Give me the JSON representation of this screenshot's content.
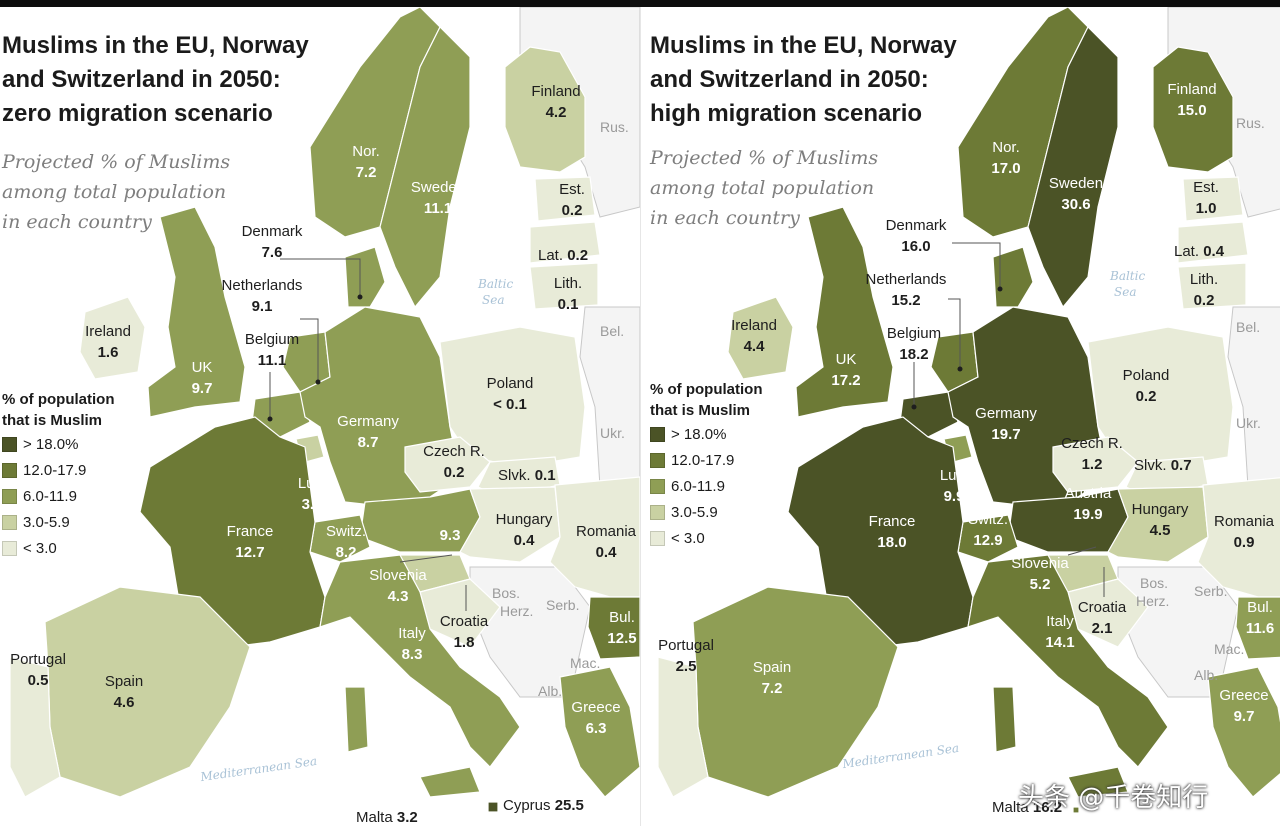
{
  "colors": {
    "gt18": "#4b5326",
    "c12_17": "#6d7a36",
    "c6_11": "#8f9e55",
    "c3_5": "#c9d1a2",
    "lt3": "#e8ebd8",
    "non_data": "#f4f4f4",
    "sea": "#ffffff",
    "border": "#bfbfbf"
  },
  "legend": {
    "title_line1": "% of population",
    "title_line2": "that is Muslim",
    "items": [
      {
        "label": "> 18.0%",
        "color_key": "gt18"
      },
      {
        "label": "12.0-17.9",
        "color_key": "c12_17"
      },
      {
        "label": "6.0-11.9",
        "color_key": "c6_11"
      },
      {
        "label": "3.0-5.9",
        "color_key": "c3_5"
      },
      {
        "label": "< 3.0",
        "color_key": "lt3"
      }
    ]
  },
  "panels": {
    "left": {
      "title_line1": "Muslims in the EU, Norway",
      "title_line2": "and Switzerland in 2050:",
      "title_line3": "zero migration scenario",
      "subtitle_line1": "Projected % of Muslims",
      "subtitle_line2": "among total population",
      "subtitle_line3": "in each country",
      "countries": {
        "norway": {
          "name": "Nor.",
          "value": "7.2",
          "color": "#8f9e55"
        },
        "sweden": {
          "name": "Sweden",
          "value": "11.1",
          "color": "#8f9e55"
        },
        "finland": {
          "name": "Finland",
          "value": "4.2",
          "color": "#c9d1a2"
        },
        "estonia": {
          "name": "Est.",
          "value": "0.2",
          "color": "#e8ebd8"
        },
        "latvia": {
          "name": "Lat.",
          "value": "0.2",
          "color": "#e8ebd8"
        },
        "lithuania": {
          "name": "Lith.",
          "value": "0.1",
          "color": "#e8ebd8"
        },
        "denmark": {
          "name": "Denmark",
          "value": "7.6",
          "color": "#8f9e55"
        },
        "netherlands": {
          "name": "Netherlands",
          "value": "9.1",
          "color": "#8f9e55"
        },
        "belgium": {
          "name": "Belgium",
          "value": "11.1",
          "color": "#8f9e55"
        },
        "ireland": {
          "name": "Ireland",
          "value": "1.6",
          "color": "#e8ebd8"
        },
        "uk": {
          "name": "UK",
          "value": "9.7",
          "color": "#8f9e55"
        },
        "germany": {
          "name": "Germany",
          "value": "8.7",
          "color": "#8f9e55"
        },
        "poland": {
          "name": "Poland",
          "value": "< 0.1",
          "color": "#e8ebd8"
        },
        "czech": {
          "name": "Czech R.",
          "value": "0.2",
          "color": "#e8ebd8"
        },
        "slovakia": {
          "name": "Slvk.",
          "value": "0.1",
          "color": "#e8ebd8"
        },
        "austria": {
          "name": "",
          "value": "9.3",
          "color": "#8f9e55"
        },
        "hungary": {
          "name": "Hungary",
          "value": "0.4",
          "color": "#e8ebd8"
        },
        "romania": {
          "name": "Romania",
          "value": "0.4",
          "color": "#e8ebd8"
        },
        "luxembourg": {
          "name": "Lux.",
          "value": "3.4",
          "color": "#c9d1a2"
        },
        "switzerland": {
          "name": "Switz.",
          "value": "8.2",
          "color": "#8f9e55"
        },
        "france": {
          "name": "France",
          "value": "12.7",
          "color": "#6d7a36"
        },
        "slovenia": {
          "name": "Slovenia",
          "value": "4.3",
          "color": "#c9d1a2"
        },
        "croatia": {
          "name": "Croatia",
          "value": "1.8",
          "color": "#e8ebd8"
        },
        "bulgaria": {
          "name": "Bul.",
          "value": "12.5",
          "color": "#6d7a36"
        },
        "italy": {
          "name": "Italy",
          "value": "8.3",
          "color": "#8f9e55"
        },
        "greece": {
          "name": "Greece",
          "value": "6.3",
          "color": "#8f9e55"
        },
        "portugal": {
          "name": "Portugal",
          "value": "0.5",
          "color": "#e8ebd8"
        },
        "spain": {
          "name": "Spain",
          "value": "4.6",
          "color": "#c9d1a2"
        },
        "cyprus": {
          "name": "Cyprus",
          "value": "25.5",
          "color": "#4b5326"
        },
        "malta": {
          "name": "Malta",
          "value": "3.2",
          "color": "#c9d1a2"
        }
      }
    },
    "right": {
      "title_line1": "Muslims in the EU, Norway",
      "title_line2": "and Switzerland in 2050:",
      "title_line3": "high migration scenario",
      "subtitle_line1": "Projected % of Muslims",
      "subtitle_line2": "among total population",
      "subtitle_line3": "in each country",
      "countries": {
        "norway": {
          "name": "Nor.",
          "value": "17.0",
          "color": "#6d7a36"
        },
        "sweden": {
          "name": "Sweden",
          "value": "30.6",
          "color": "#4b5326"
        },
        "finland": {
          "name": "Finland",
          "value": "15.0",
          "color": "#6d7a36"
        },
        "estonia": {
          "name": "Est.",
          "value": "1.0",
          "color": "#e8ebd8"
        },
        "latvia": {
          "name": "Lat.",
          "value": "0.4",
          "color": "#e8ebd8"
        },
        "lithuania": {
          "name": "Lith.",
          "value": "0.2",
          "color": "#e8ebd8"
        },
        "denmark": {
          "name": "Denmark",
          "value": "16.0",
          "color": "#6d7a36"
        },
        "netherlands": {
          "name": "Netherlands",
          "value": "15.2",
          "color": "#6d7a36"
        },
        "belgium": {
          "name": "Belgium",
          "value": "18.2",
          "color": "#4b5326"
        },
        "ireland": {
          "name": "Ireland",
          "value": "4.4",
          "color": "#c9d1a2"
        },
        "uk": {
          "name": "UK",
          "value": "17.2",
          "color": "#6d7a36"
        },
        "germany": {
          "name": "Germany",
          "value": "19.7",
          "color": "#4b5326"
        },
        "poland": {
          "name": "Poland",
          "value": "0.2",
          "color": "#e8ebd8"
        },
        "czech": {
          "name": "Czech R.",
          "value": "1.2",
          "color": "#e8ebd8"
        },
        "slovakia": {
          "name": "Slvk.",
          "value": "0.7",
          "color": "#e8ebd8"
        },
        "austria": {
          "name": "Austria",
          "value": "19.9",
          "color": "#4b5326"
        },
        "hungary": {
          "name": "Hungary",
          "value": "4.5",
          "color": "#c9d1a2"
        },
        "romania": {
          "name": "Romania",
          "value": "0.9",
          "color": "#e8ebd8"
        },
        "luxembourg": {
          "name": "Lux.",
          "value": "9.9",
          "color": "#8f9e55"
        },
        "switzerland": {
          "name": "Switz.",
          "value": "12.9",
          "color": "#6d7a36"
        },
        "france": {
          "name": "France",
          "value": "18.0",
          "color": "#4b5326"
        },
        "slovenia": {
          "name": "Slovenia",
          "value": "5.2",
          "color": "#c9d1a2"
        },
        "croatia": {
          "name": "Croatia",
          "value": "2.1",
          "color": "#e8ebd8"
        },
        "bulgaria": {
          "name": "Bul.",
          "value": "11.6",
          "color": "#8f9e55"
        },
        "italy": {
          "name": "Italy",
          "value": "14.1",
          "color": "#6d7a36"
        },
        "greece": {
          "name": "Greece",
          "value": "9.7",
          "color": "#8f9e55"
        },
        "portugal": {
          "name": "Portugal",
          "value": "2.5",
          "color": "#e8ebd8"
        },
        "spain": {
          "name": "Spain",
          "value": "7.2",
          "color": "#8f9e55"
        },
        "malta": {
          "name": "Malta",
          "value": "16.2",
          "color": "#6d7a36"
        }
      }
    }
  },
  "other_labels": {
    "rus": "Rus.",
    "bel": "Bel.",
    "ukr": "Ukr.",
    "bos": "Bos.",
    "herz": "Herz.",
    "serb": "Serb.",
    "mac": "Mac.",
    "alb": "Alb.",
    "baltic_sea_1": "Baltic",
    "baltic_sea_2": "Sea",
    "mediterranean": "Mediterranean Sea"
  },
  "watermark": "头条 @千卷知行"
}
